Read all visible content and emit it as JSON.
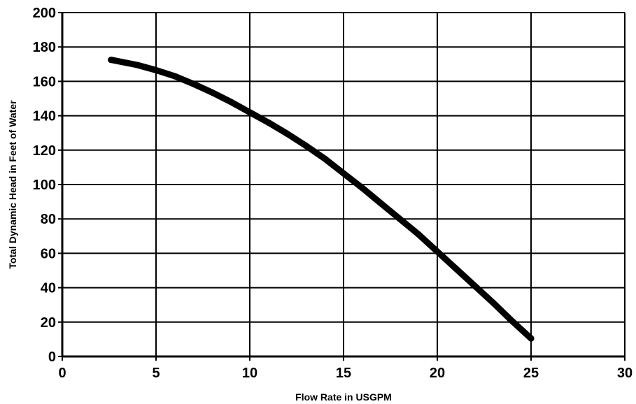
{
  "chart_data": {
    "type": "line",
    "title": "",
    "xlabel": "Flow Rate in USGPM",
    "ylabel": "Total Dynamic Head in Feet of Water",
    "xlim": [
      0,
      30
    ],
    "ylim": [
      0,
      200
    ],
    "xticks": [
      0,
      5,
      10,
      15,
      20,
      25,
      30
    ],
    "yticks": [
      0,
      20,
      40,
      60,
      80,
      100,
      120,
      140,
      160,
      180,
      200
    ],
    "grid": true,
    "legend": "none",
    "series": [
      {
        "color": "#000000",
        "x": [
          2.6,
          4,
          5,
          6,
          7,
          8,
          9,
          10,
          11,
          12,
          13,
          14,
          15,
          16,
          17,
          18,
          19,
          20,
          21,
          22,
          23,
          24,
          25
        ],
        "y": [
          172.5,
          169.5,
          166.5,
          163,
          158.5,
          153.5,
          148,
          142,
          136,
          129.5,
          122.5,
          115,
          106.5,
          98,
          89,
          80,
          71,
          61,
          51,
          41,
          31,
          20.5,
          10.5
        ]
      }
    ]
  }
}
